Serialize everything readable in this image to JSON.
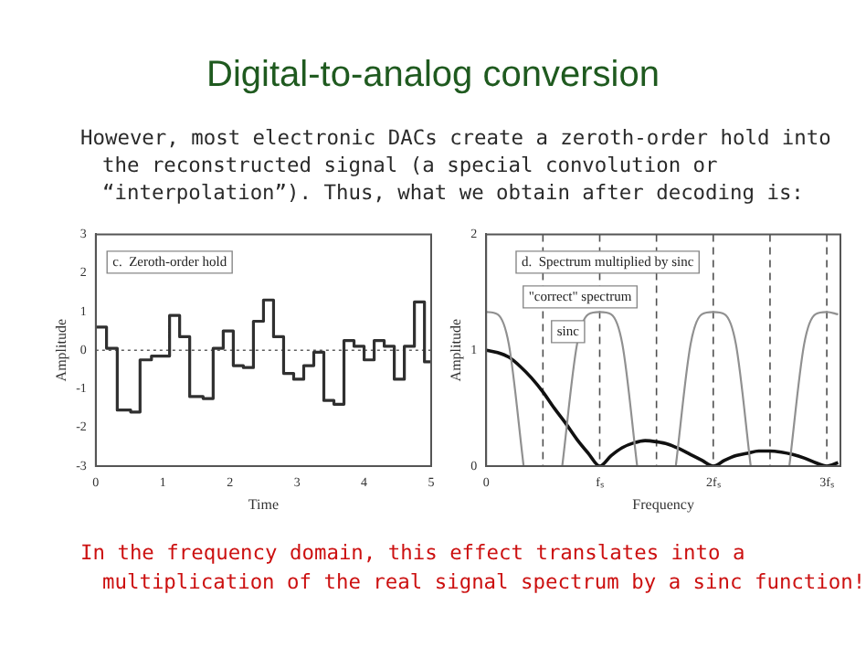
{
  "chart_data": [
    {
      "type": "step",
      "title": "Digital-to-analog conversion",
      "subtitle": "However, most electronic DACs create a zeroth-order hold into the reconstructed signal (a special convolution or “interpolation”). Thus, what we obtain after decoding is:",
      "xlabel": "Time",
      "ylabel": "Amplitude",
      "x": [
        0,
        0.16,
        0.32,
        0.52,
        0.66,
        0.83,
        1.1,
        1.25,
        1.4,
        1.6,
        1.75,
        1.9,
        2.05,
        2.2,
        2.35,
        2.5,
        2.65,
        2.8,
        2.95,
        3.1,
        3.25,
        3.4,
        3.55,
        3.7,
        3.85,
        4.0,
        4.15,
        4.3,
        4.45,
        4.6,
        4.75,
        4.9,
        5
      ],
      "series": [
        {
          "color": "#303030",
          "values": [
            0.6,
            0.05,
            -1.55,
            -1.6,
            -0.25,
            -0.15,
            0.9,
            0.35,
            -1.2,
            -1.25,
            0.05,
            0.5,
            -0.4,
            -0.45,
            0.75,
            1.3,
            0.35,
            -0.6,
            -0.75,
            -0.4,
            -0.05,
            -1.3,
            -1.4,
            0.25,
            0.1,
            -0.25,
            0.25,
            0.1,
            -0.75,
            0.1,
            1.25,
            -0.3,
            -0.3
          ]
        }
      ],
      "xlim": [
        0,
        5
      ],
      "xticks": [
        0,
        1,
        2,
        3,
        4,
        5
      ],
      "ylim": [
        -3,
        3
      ],
      "yticks": [
        -3,
        -2,
        -1,
        0,
        1,
        2,
        3
      ],
      "grid": false,
      "legend": false,
      "marker": "none",
      "ref_lines": [
        {
          "axis": "y",
          "value": 0,
          "color": "#606060",
          "line_style": "dotted"
        }
      ],
      "annotations": [
        "c.  Zeroth-order hold"
      ]
    },
    {
      "type": "line",
      "xlabel": "Frequency",
      "ylabel": "Amplitude",
      "series": [
        {
          "color": "#909090",
          "x": [
            0,
            0.1,
            0.2,
            0.33,
            0.5,
            0.67,
            0.8,
            0.9,
            1,
            1.1,
            1.2,
            1.33,
            1.5,
            1.67,
            1.8,
            1.9,
            2,
            2.1,
            2.2,
            2.33,
            2.5,
            2.67,
            2.8,
            2.9,
            3,
            3.1
          ],
          "values": [
            1.33,
            1.31,
            1.05,
            0,
            null,
            0,
            1.05,
            1.31,
            1.33,
            1.31,
            1.05,
            0,
            null,
            0,
            1.05,
            1.31,
            1.33,
            1.31,
            1.05,
            0,
            null,
            0,
            1.05,
            1.31,
            1.33,
            1.31
          ]
        },
        {
          "color": "#111111",
          "x": [
            0,
            0.1,
            0.2,
            0.3,
            0.4,
            0.5,
            0.6,
            0.7,
            0.8,
            0.9,
            1,
            1.1,
            1.2,
            1.3,
            1.4,
            1.5,
            1.6,
            1.7,
            1.8,
            1.9,
            2,
            2.1,
            2.2,
            2.3,
            2.4,
            2.5,
            2.6,
            2.7,
            2.8,
            2.9,
            3,
            3.1
          ],
          "values": [
            1,
            0.98,
            0.94,
            0.86,
            0.76,
            0.64,
            0.5,
            0.37,
            0.23,
            0.11,
            0,
            0.09,
            0.16,
            0.2,
            0.22,
            0.21,
            0.19,
            0.15,
            0.1,
            0.05,
            0,
            0.05,
            0.09,
            0.11,
            0.13,
            0.13,
            0.12,
            0.1,
            0.07,
            0.03,
            0,
            0.03
          ]
        }
      ],
      "xlim": [
        0,
        3.12
      ],
      "xticks": [
        0,
        {
          "value": 1,
          "label": "fₛ"
        },
        {
          "value": 2,
          "label": "2fₛ"
        },
        {
          "value": 3,
          "label": "3fₛ"
        }
      ],
      "ylim": [
        0,
        2
      ],
      "yticks": [
        0,
        1,
        2
      ],
      "grid": false,
      "legend": false,
      "marker": "none",
      "ref_lines": [
        {
          "axis": "x",
          "value": 0.5,
          "color": "#505050",
          "line_style": "dashed"
        },
        {
          "axis": "x",
          "value": 1,
          "color": "#505050",
          "line_style": "dashed"
        },
        {
          "axis": "x",
          "value": 1.5,
          "color": "#505050",
          "line_style": "dashed"
        },
        {
          "axis": "x",
          "value": 2,
          "color": "#505050",
          "line_style": "dashed"
        },
        {
          "axis": "x",
          "value": 2.5,
          "color": "#505050",
          "line_style": "dashed"
        },
        {
          "axis": "x",
          "value": 3,
          "color": "#505050",
          "line_style": "dashed"
        }
      ],
      "annotations": [
        "d.  Spectrum multiplied by sinc",
        "\"correct\" spectrum",
        "sinc",
        "In the frequency domain, this effect translates into a multiplication of the real signal spectrum by a sinc function!"
      ]
    }
  ]
}
